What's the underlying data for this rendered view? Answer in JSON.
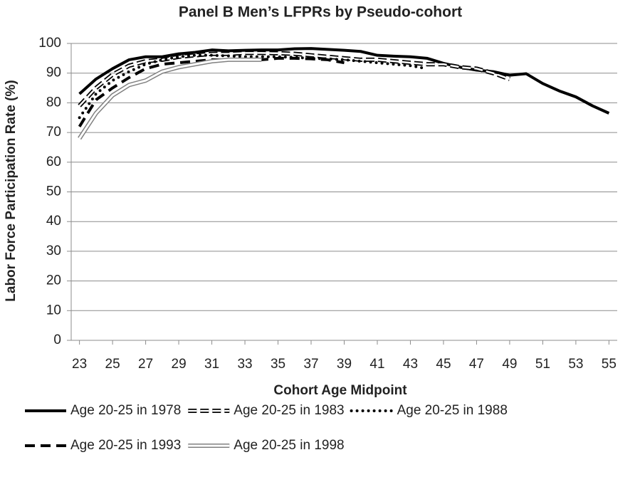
{
  "chart_data": {
    "type": "line",
    "title": "Panel B Men’s LFPRs by Pseudo-cohort",
    "x_label": "Cohort Age Midpoint",
    "y_label": "Labor Force Participation Rate (%)",
    "x": [
      23,
      24,
      25,
      26,
      27,
      28,
      29,
      30,
      31,
      32,
      33,
      34,
      35,
      36,
      37,
      38,
      39,
      40,
      41,
      42,
      43,
      44,
      45,
      46,
      47,
      48,
      49,
      50,
      51,
      52,
      53,
      54,
      55
    ],
    "xlim": [
      22.5,
      55.5
    ],
    "xticks": [
      23,
      25,
      27,
      29,
      31,
      33,
      35,
      37,
      39,
      41,
      43,
      45,
      47,
      49,
      51,
      53,
      55
    ],
    "ylim": [
      0,
      100
    ],
    "yticks": [
      0,
      10,
      20,
      30,
      40,
      50,
      60,
      70,
      80,
      90,
      100
    ],
    "grid": true,
    "legend": "bottom",
    "series": [
      {
        "name": "Age 20-25 in 1978",
        "color": "#000000",
        "style": "solid",
        "values": [
          83,
          88,
          91.5,
          94.5,
          95.5,
          95.5,
          96.5,
          97,
          97.8,
          97.5,
          97.7,
          97.8,
          97.8,
          98.2,
          98.3,
          98,
          97.7,
          97.3,
          96,
          95.7,
          95.5,
          95,
          93.3,
          92,
          91,
          90.5,
          89.3,
          89.8,
          86.5,
          84,
          82,
          79,
          76.5
        ]
      },
      {
        "name": "Age 20-25 in 1983",
        "color": "#000000",
        "style": "double-dash",
        "values": [
          79,
          85,
          89.5,
          92.5,
          94,
          94.5,
          95.5,
          96,
          96.5,
          96.5,
          96.8,
          96.8,
          96.7,
          96.5,
          96,
          95.5,
          95,
          94.5,
          94.5,
          94,
          93.5,
          93,
          93,
          92,
          91.5,
          90,
          88,
          null,
          null,
          null,
          null,
          null,
          null
        ]
      },
      {
        "name": "Age 20-25 in 1988",
        "color": "#000000",
        "style": "dot",
        "values": [
          75,
          83,
          87.5,
          90.5,
          93,
          94.5,
          95.5,
          96,
          96,
          95.8,
          95.5,
          95.5,
          95.5,
          95.3,
          95,
          94.8,
          94.5,
          94,
          93.5,
          93,
          92.5,
          91.5,
          null,
          null,
          null,
          null,
          null,
          null,
          null,
          null,
          null,
          null,
          null
        ]
      },
      {
        "name": "Age 20-25 in 1993",
        "color": "#000000",
        "style": "dash",
        "values": [
          72,
          81,
          85,
          88.5,
          91.5,
          93,
          93.5,
          94,
          94.5,
          94.5,
          94.5,
          94.5,
          95,
          95,
          94.8,
          94.5,
          93.5,
          null,
          null,
          null,
          null,
          null,
          null,
          null,
          null,
          null,
          null,
          null,
          null,
          null,
          null,
          null,
          null
        ]
      },
      {
        "name": "Age 20-25 in 1998",
        "color": "#808080",
        "style": "double",
        "values": [
          68,
          76.5,
          82.5,
          86,
          87.5,
          90.5,
          92,
          93,
          94,
          94.5,
          94.5,
          94.5,
          null,
          null,
          null,
          null,
          null,
          null,
          null,
          null,
          null,
          null,
          null,
          null,
          null,
          null,
          null,
          null,
          null,
          null,
          null,
          null,
          null
        ]
      }
    ]
  }
}
